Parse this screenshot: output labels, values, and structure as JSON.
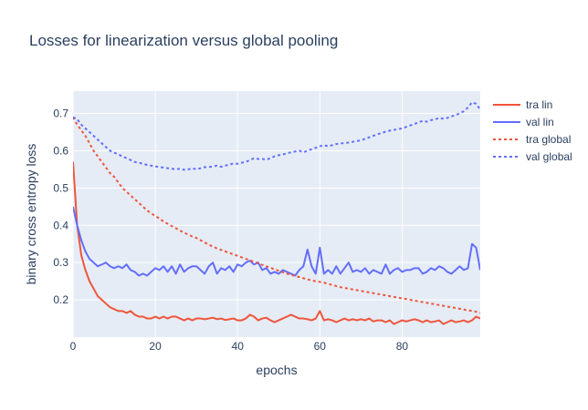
{
  "chart_data": {
    "type": "line",
    "title": "Losses for linearization versus global pooling",
    "xlabel": "epochs",
    "ylabel": "binary cross entropy loss",
    "xlim": [
      0,
      99
    ],
    "ylim": [
      0.1,
      0.76
    ],
    "x_ticks": [
      0,
      20,
      40,
      60,
      80
    ],
    "y_ticks": [
      0.2,
      0.3,
      0.4,
      0.5,
      0.6,
      0.7
    ],
    "x_tick_labels": [
      "0",
      "20",
      "40",
      "60",
      "80"
    ],
    "y_tick_labels": [
      "0.2",
      "0.3",
      "0.4",
      "0.5",
      "0.6",
      "0.7"
    ],
    "grid": true,
    "legend_position": "right",
    "plot_background": "#e5ecf6",
    "grid_color": "#ffffff",
    "text_color": "#2a3f5f",
    "series": [
      {
        "name": "tra lin",
        "color": "#ef553b",
        "dash": "solid",
        "values": [
          0.57,
          0.4,
          0.32,
          0.28,
          0.25,
          0.23,
          0.21,
          0.2,
          0.19,
          0.18,
          0.175,
          0.17,
          0.17,
          0.165,
          0.17,
          0.16,
          0.155,
          0.155,
          0.15,
          0.15,
          0.155,
          0.15,
          0.155,
          0.15,
          0.155,
          0.155,
          0.15,
          0.145,
          0.15,
          0.145,
          0.15,
          0.15,
          0.148,
          0.15,
          0.152,
          0.148,
          0.15,
          0.146,
          0.148,
          0.15,
          0.145,
          0.145,
          0.15,
          0.16,
          0.155,
          0.145,
          0.15,
          0.152,
          0.145,
          0.14,
          0.145,
          0.15,
          0.155,
          0.16,
          0.155,
          0.15,
          0.15,
          0.148,
          0.145,
          0.15,
          0.17,
          0.145,
          0.148,
          0.145,
          0.14,
          0.145,
          0.15,
          0.145,
          0.148,
          0.145,
          0.148,
          0.145,
          0.15,
          0.142,
          0.145,
          0.145,
          0.14,
          0.145,
          0.135,
          0.14,
          0.145,
          0.142,
          0.145,
          0.148,
          0.145,
          0.14,
          0.145,
          0.14,
          0.142,
          0.145,
          0.135,
          0.14,
          0.145,
          0.14,
          0.142,
          0.145,
          0.14,
          0.145,
          0.155,
          0.15
        ]
      },
      {
        "name": "val lin",
        "color": "#636efa",
        "dash": "solid",
        "values": [
          0.45,
          0.4,
          0.36,
          0.33,
          0.31,
          0.3,
          0.29,
          0.295,
          0.3,
          0.29,
          0.285,
          0.29,
          0.285,
          0.295,
          0.28,
          0.275,
          0.265,
          0.27,
          0.265,
          0.275,
          0.285,
          0.28,
          0.29,
          0.275,
          0.29,
          0.27,
          0.295,
          0.275,
          0.285,
          0.29,
          0.29,
          0.28,
          0.27,
          0.29,
          0.3,
          0.27,
          0.285,
          0.28,
          0.29,
          0.275,
          0.295,
          0.29,
          0.3,
          0.305,
          0.295,
          0.3,
          0.28,
          0.285,
          0.27,
          0.275,
          0.27,
          0.28,
          0.275,
          0.27,
          0.265,
          0.28,
          0.29,
          0.335,
          0.29,
          0.27,
          0.34,
          0.27,
          0.28,
          0.27,
          0.29,
          0.27,
          0.285,
          0.3,
          0.275,
          0.28,
          0.275,
          0.285,
          0.27,
          0.28,
          0.275,
          0.27,
          0.295,
          0.27,
          0.28,
          0.285,
          0.275,
          0.28,
          0.28,
          0.285,
          0.285,
          0.27,
          0.275,
          0.285,
          0.28,
          0.29,
          0.285,
          0.275,
          0.27,
          0.28,
          0.29,
          0.28,
          0.285,
          0.35,
          0.34,
          0.28
        ]
      },
      {
        "name": "tra global",
        "color": "#ef553b",
        "dash": "dot",
        "values": [
          0.69,
          0.67,
          0.655,
          0.64,
          0.62,
          0.6,
          0.585,
          0.57,
          0.555,
          0.54,
          0.53,
          0.515,
          0.5,
          0.49,
          0.48,
          0.47,
          0.46,
          0.45,
          0.44,
          0.432,
          0.425,
          0.418,
          0.41,
          0.404,
          0.398,
          0.392,
          0.386,
          0.38,
          0.375,
          0.37,
          0.366,
          0.36,
          0.354,
          0.348,
          0.343,
          0.338,
          0.334,
          0.33,
          0.326,
          0.322,
          0.318,
          0.314,
          0.31,
          0.306,
          0.302,
          0.298,
          0.294,
          0.29,
          0.286,
          0.282,
          0.278,
          0.274,
          0.27,
          0.267,
          0.264,
          0.261,
          0.258,
          0.255,
          0.252,
          0.25,
          0.248,
          0.246,
          0.243,
          0.24,
          0.237,
          0.234,
          0.232,
          0.23,
          0.228,
          0.226,
          0.224,
          0.222,
          0.22,
          0.218,
          0.216,
          0.214,
          0.212,
          0.21,
          0.208,
          0.206,
          0.204,
          0.202,
          0.2,
          0.198,
          0.196,
          0.194,
          0.192,
          0.19,
          0.188,
          0.186,
          0.184,
          0.182,
          0.18,
          0.178,
          0.176,
          0.174,
          0.172,
          0.17,
          0.168,
          0.165
        ]
      },
      {
        "name": "val global",
        "color": "#636efa",
        "dash": "dot",
        "values": [
          0.69,
          0.685,
          0.67,
          0.66,
          0.65,
          0.64,
          0.63,
          0.62,
          0.61,
          0.6,
          0.595,
          0.59,
          0.585,
          0.58,
          0.575,
          0.57,
          0.568,
          0.565,
          0.562,
          0.56,
          0.558,
          0.556,
          0.555,
          0.553,
          0.552,
          0.55,
          0.552,
          0.549,
          0.55,
          0.553,
          0.55,
          0.553,
          0.556,
          0.556,
          0.558,
          0.56,
          0.557,
          0.56,
          0.563,
          0.566,
          0.565,
          0.568,
          0.57,
          0.575,
          0.58,
          0.578,
          0.578,
          0.576,
          0.58,
          0.585,
          0.588,
          0.59,
          0.593,
          0.596,
          0.598,
          0.6,
          0.596,
          0.6,
          0.604,
          0.608,
          0.612,
          0.615,
          0.612,
          0.615,
          0.618,
          0.62,
          0.62,
          0.622,
          0.624,
          0.626,
          0.628,
          0.632,
          0.636,
          0.64,
          0.644,
          0.648,
          0.651,
          0.654,
          0.656,
          0.658,
          0.66,
          0.664,
          0.668,
          0.672,
          0.676,
          0.68,
          0.678,
          0.682,
          0.684,
          0.688,
          0.686,
          0.688,
          0.692,
          0.696,
          0.7,
          0.706,
          0.716,
          0.73,
          0.726,
          0.71
        ]
      }
    ]
  }
}
